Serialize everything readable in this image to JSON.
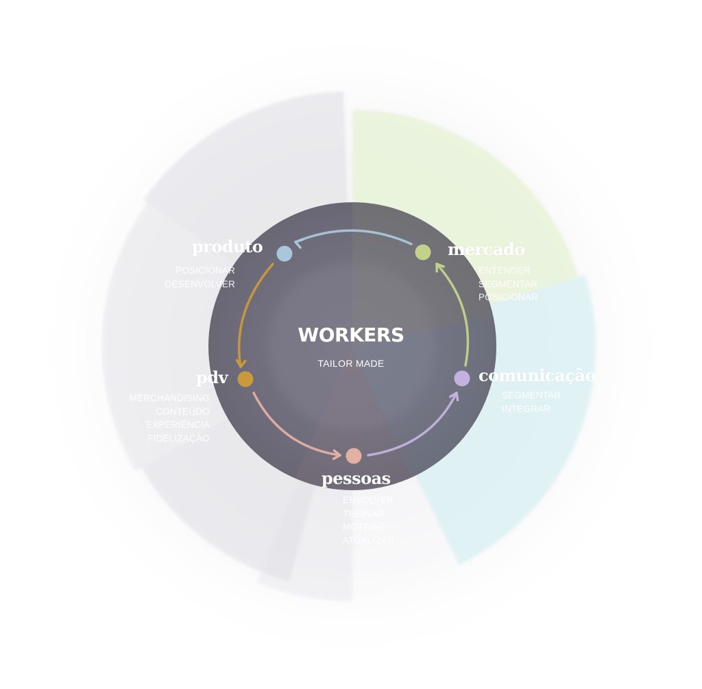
{
  "center": {
    "title": "WORKERS",
    "subtitle": "TAILOR MADE"
  },
  "nodes": [
    {
      "key": "produto",
      "title": "produto",
      "color": "#a9c6da",
      "actions": [
        "POSICIONAR",
        "DESENVOLVER"
      ]
    },
    {
      "key": "mercado",
      "title": "mercado",
      "color": "#c2d28a",
      "actions": [
        "ENTENDER",
        "SEGMENTAR",
        "POSICIONAR"
      ]
    },
    {
      "key": "comunicacao",
      "title": "comunicação",
      "color": "#c3b2e0",
      "actions": [
        "SEGMENTAR",
        "INTEGRAR"
      ]
    },
    {
      "key": "pessoas",
      "title": "pessoas",
      "color": "#e3b0a4",
      "actions": [
        "ENVOLVER",
        "TREINAR",
        "MOTIVAR",
        "ATUALIZAR"
      ]
    },
    {
      "key": "pdv",
      "title": "pdv",
      "color": "#c99a3b",
      "actions": [
        "MERCHANDISING",
        "CONTEÚDO",
        "EXPERIÊNCIA",
        "FIDELIZAÇÃO"
      ]
    }
  ],
  "colors": {
    "inner_disc": "#6f6c7a",
    "sector_gray": "#dfdfe4",
    "sector_green": "#e6f1d3",
    "sector_cyan": "#d4eef1",
    "arrow_top": "#a9c6da",
    "arrow_left": "#c99a3b",
    "arrow_bottom_left": "#e3b0a4",
    "arrow_bottom_right": "#c3b2e0",
    "arrow_right": "#c2d28a"
  }
}
